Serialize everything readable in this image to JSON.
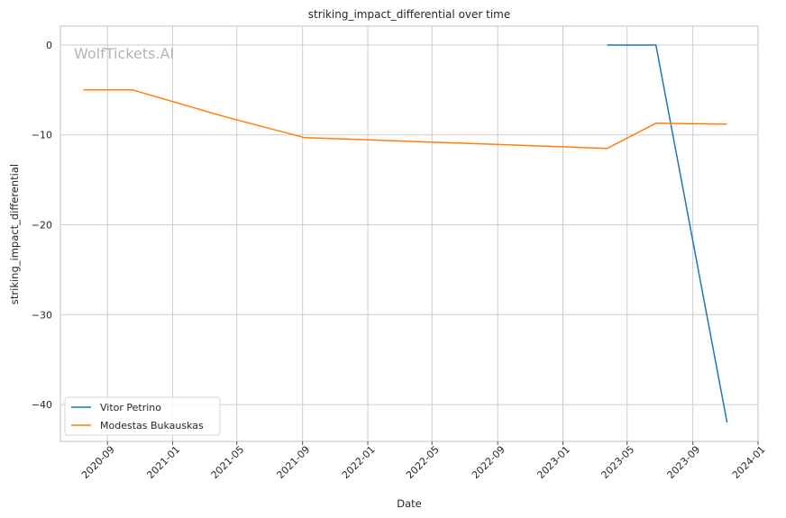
{
  "watermark": "WolfTickets.AI",
  "chart_data": {
    "type": "line",
    "title": "striking_impact_differential over time",
    "xlabel": "Date",
    "ylabel": "striking_impact_differential",
    "x_is_date": true,
    "xlim": [
      "2020-06-05",
      "2024-01-01"
    ],
    "ylim": [
      -44.1,
      2.1
    ],
    "x_ticks": [
      "2020-09",
      "2021-01",
      "2021-05",
      "2021-09",
      "2022-01",
      "2022-05",
      "2022-09",
      "2023-01",
      "2023-05",
      "2023-09",
      "2024-01"
    ],
    "y_ticks": [
      0,
      -10,
      -20,
      -30,
      -40
    ],
    "y_tick_labels": [
      "0",
      "−10",
      "−20",
      "−30",
      "−40"
    ],
    "grid": true,
    "legend_position": "bottom-left",
    "series": [
      {
        "name": "Vitor Petrino",
        "color": "#1f77b4",
        "x": [
          "2023-03-25",
          "2023-06-24",
          "2023-11-04"
        ],
        "y": [
          0,
          0,
          -42
        ]
      },
      {
        "name": "Modestas Bukauskas",
        "color": "#ff7f0e",
        "x": [
          "2020-07-18",
          "2020-10-18",
          "2021-04-10",
          "2021-09-04",
          "2023-03-25",
          "2023-06-24",
          "2023-11-04"
        ],
        "y": [
          -5,
          -5,
          -8,
          -10.3,
          -11.5,
          -8.7,
          -8.8
        ]
      }
    ]
  }
}
